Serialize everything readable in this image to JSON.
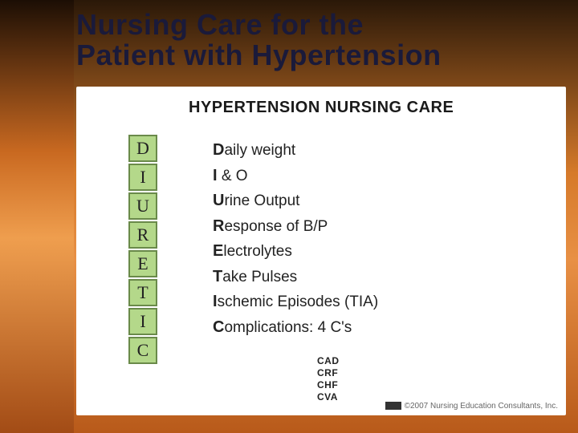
{
  "title": {
    "line1": "Nursing Care for the",
    "line2": "Patient with Hypertension",
    "color": "#1a1a3a",
    "fontsize": 36
  },
  "card": {
    "subtitle": "HYPERTENSION NURSING CARE",
    "background": "#ffffff"
  },
  "mnemonic": {
    "letters": [
      "D",
      "I",
      "U",
      "R",
      "E",
      "T",
      "I",
      "C"
    ],
    "box_bg": "#b4d88a",
    "box_border": "#6a8a4a"
  },
  "details": [
    {
      "bold": "D",
      "rest": "aily weight"
    },
    {
      "bold": "I",
      "rest": " & O"
    },
    {
      "bold": "U",
      "rest": "rine Output"
    },
    {
      "bold": "R",
      "rest": "esponse of B/P"
    },
    {
      "bold": "E",
      "rest": "lectrolytes"
    },
    {
      "bold": "T",
      "rest": "ake Pulses"
    },
    {
      "bold": "I",
      "rest": "schemic Episodes (TIA)"
    },
    {
      "bold": "C",
      "rest": "omplications: 4 C's"
    }
  ],
  "complications": [
    "CAD",
    "CRF",
    "CHF",
    "CVA"
  ],
  "copyright": "©2007 Nursing Education Consultants, Inc.",
  "colors": {
    "bg_grad_top": "#2a1808",
    "bg_grad_mid": "#d67a2a",
    "bg_grad_bot": "#b85a1a"
  }
}
